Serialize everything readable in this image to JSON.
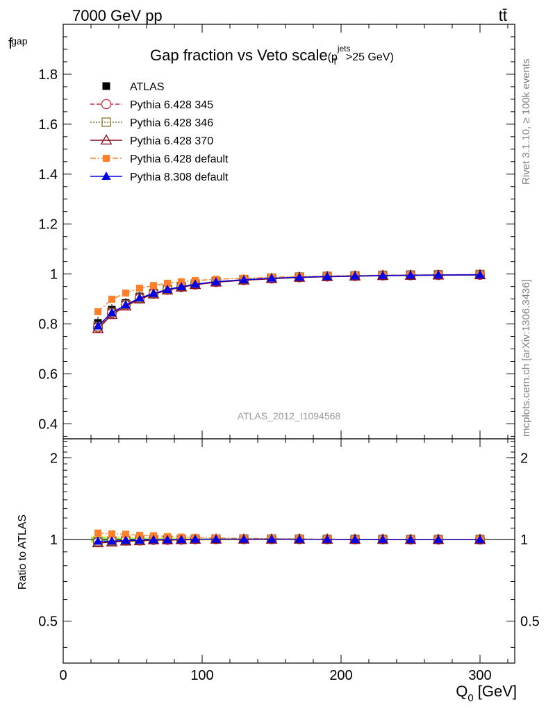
{
  "header": {
    "left": "7000 GeV pp",
    "right": "tt̄"
  },
  "side": {
    "rivet": "Rivet 3.1.10, ≥ 100k events",
    "mcplots": "mcplots.cern.ch [arXiv:1306.3436]"
  },
  "analysis_id": "ATLAS_2012_I1094568",
  "chart_data": {
    "type": "line",
    "title": "Gap fraction vs Veto scale",
    "title_suffix": {
      "open": "(p",
      "sup": "jets",
      "sub": "T",
      "close": ">25 GeV)"
    },
    "xlabel": "Q",
    "xlabel_sub": "0",
    "xlabel_unit": "[GeV]",
    "ylabel": "f",
    "ylabel_sub": "gap",
    "ratio_ylabel": "Ratio to ATLAS",
    "xlim": [
      0,
      325
    ],
    "ylim": [
      0.34,
      2.0
    ],
    "ratio_ylim": [
      0.35,
      2.35
    ],
    "x_ticks": [
      "0",
      "100",
      "200",
      "300"
    ],
    "y_ticks": [
      "0.4",
      "0.6",
      "0.8",
      "1",
      "1.2",
      "1.4",
      "1.6",
      "1.8"
    ],
    "ratio_ticks": [
      "0.5",
      "1",
      "2"
    ],
    "legend_position": "top-left",
    "x": [
      25,
      35,
      45,
      55,
      65,
      75,
      85,
      95,
      110,
      130,
      150,
      170,
      190,
      210,
      230,
      250,
      270,
      300
    ],
    "data": {
      "name": "ATLAS",
      "values": [
        0.804,
        0.857,
        0.884,
        0.91,
        0.924,
        0.94,
        0.95,
        0.957,
        0.966,
        0.974,
        0.98,
        0.985,
        0.989,
        0.992,
        0.994,
        0.996,
        0.997,
        0.998
      ],
      "band": [
        0.025,
        0.022,
        0.02,
        0.018,
        0.016,
        0.014,
        0.012,
        0.01,
        0.008,
        0.007,
        0.006,
        0.005,
        0.004,
        0.004,
        0.003,
        0.003,
        0.003,
        0.003
      ]
    },
    "series": [
      {
        "name": "Pythia 6.428 345",
        "color": "#c8283c",
        "dash": "6,3",
        "marker": "circle-open",
        "values": [
          0.786,
          0.843,
          0.875,
          0.902,
          0.921,
          0.937,
          0.948,
          0.958,
          0.968,
          0.976,
          0.982,
          0.987,
          0.99,
          0.992,
          0.994,
          0.995,
          0.996,
          0.997
        ]
      },
      {
        "name": "Pythia 6.428 346",
        "color": "#8c7030",
        "dash": "2,2",
        "marker": "square-open",
        "values": [
          0.79,
          0.846,
          0.878,
          0.904,
          0.923,
          0.939,
          0.95,
          0.96,
          0.97,
          0.978,
          0.984,
          0.988,
          0.991,
          0.993,
          0.995,
          0.996,
          0.997,
          0.998
        ]
      },
      {
        "name": "Pythia 6.428 370",
        "color": "#8c0a1e",
        "dash": "",
        "marker": "triangle-open",
        "values": [
          0.78,
          0.837,
          0.871,
          0.899,
          0.919,
          0.935,
          0.947,
          0.957,
          0.967,
          0.975,
          0.981,
          0.986,
          0.989,
          0.991,
          0.993,
          0.994,
          0.995,
          0.996
        ]
      },
      {
        "name": "Pythia 6.428 default",
        "color": "#ff7f2a",
        "dash": "8,3,2,3",
        "marker": "square-filled",
        "values": [
          0.849,
          0.899,
          0.924,
          0.943,
          0.954,
          0.963,
          0.969,
          0.974,
          0.979,
          0.983,
          0.987,
          0.99,
          0.992,
          0.994,
          0.995,
          0.996,
          0.997,
          0.998
        ]
      },
      {
        "name": "Pythia 8.308 default",
        "color": "#0000e6",
        "dash": "",
        "marker": "triangle-filled",
        "values": [
          0.792,
          0.845,
          0.876,
          0.904,
          0.922,
          0.938,
          0.949,
          0.959,
          0.969,
          0.977,
          0.983,
          0.987,
          0.99,
          0.992,
          0.994,
          0.995,
          0.996,
          0.997
        ]
      }
    ]
  }
}
